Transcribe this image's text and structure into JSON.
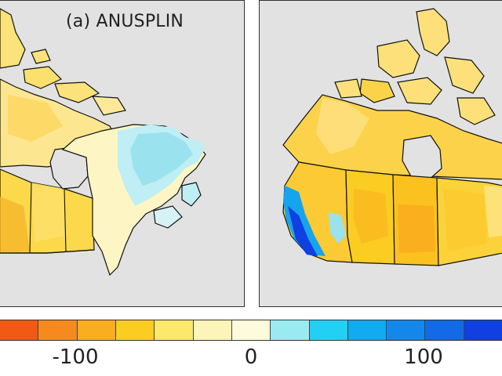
{
  "panel_a": {
    "label": "(a) ANUSPLIN"
  },
  "colorbar": {
    "colors": [
      "#f05a14",
      "#f68a1e",
      "#f9ad1f",
      "#fbcc22",
      "#fce86a",
      "#fdf4ba",
      "#fdfbdc",
      "#9aeaf2",
      "#22d0f4",
      "#12aaf0",
      "#1488ea",
      "#126ae6",
      "#1040e0"
    ],
    "ticks": [
      "-100",
      "0",
      "100"
    ]
  },
  "palette": {
    "background": "#e2e2e2",
    "outline": "#111111"
  }
}
